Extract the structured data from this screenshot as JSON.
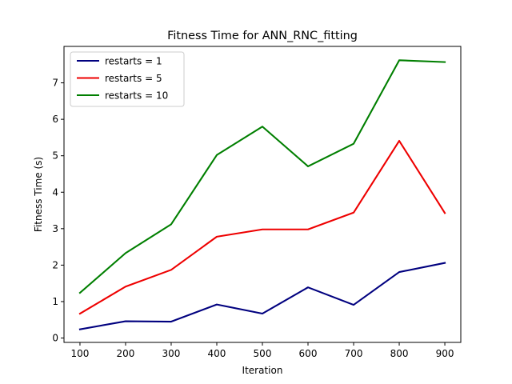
{
  "chart_data": {
    "type": "line",
    "title": "Fitness Time for ANN_RNC_fitting",
    "xlabel": "Iteration",
    "ylabel": "Fitness Time (s)",
    "x": [
      100,
      200,
      300,
      400,
      500,
      600,
      700,
      800,
      900
    ],
    "xlim": [
      65,
      935
    ],
    "ylim": [
      -0.12,
      8.0
    ],
    "xticks": [
      "100",
      "200",
      "300",
      "400",
      "500",
      "600",
      "700",
      "800",
      "900"
    ],
    "yticks": [
      "0",
      "1",
      "2",
      "3",
      "4",
      "5",
      "6",
      "7"
    ],
    "grid": false,
    "legend_position": "upper-left",
    "series": [
      {
        "name": "restarts = 1",
        "color": "#00007f",
        "values": [
          0.24,
          0.46,
          0.45,
          0.92,
          0.67,
          1.39,
          0.91,
          1.81,
          2.06
        ]
      },
      {
        "name": "restarts = 5",
        "color": "#ee0000",
        "values": [
          0.67,
          1.41,
          1.87,
          2.78,
          2.98,
          2.98,
          3.44,
          5.41,
          3.43
        ]
      },
      {
        "name": "restarts = 10",
        "color": "#007f00",
        "values": [
          1.24,
          2.33,
          3.12,
          5.02,
          5.8,
          4.71,
          5.33,
          7.62,
          7.57
        ]
      }
    ]
  }
}
